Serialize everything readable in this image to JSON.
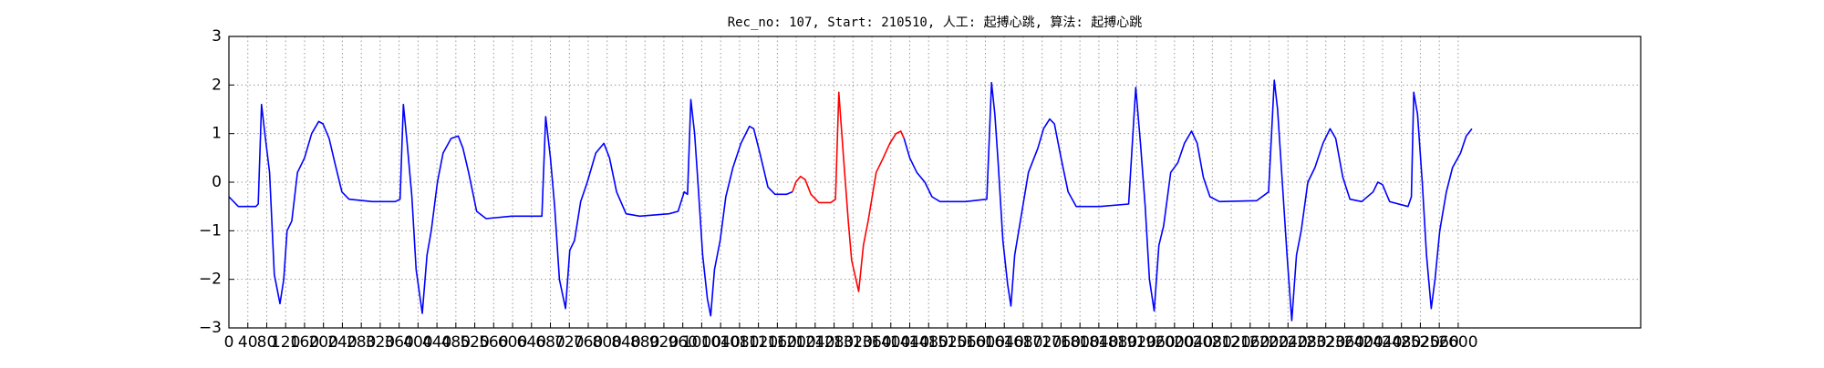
{
  "chart_data": {
    "type": "line",
    "title": "Rec_no: 107, Start: 210510, 人工: 起搏心跳, 算法: 起搏心跳",
    "xlim": [
      0,
      2986
    ],
    "ylim": [
      -3,
      3
    ],
    "xticks": [
      0,
      40,
      80,
      120,
      160,
      200,
      240,
      280,
      320,
      360,
      400,
      440,
      480,
      520,
      560,
      600,
      640,
      680,
      720,
      760,
      800,
      840,
      880,
      920,
      960,
      1000,
      1040,
      1080,
      1120,
      1160,
      1200,
      1240,
      1280,
      1320,
      1360,
      1400,
      1440,
      1480,
      1520,
      1560,
      1600,
      1640,
      1680,
      1720,
      1760,
      1800,
      1840,
      1880,
      1920,
      1960,
      2000,
      2040,
      2080,
      2120,
      2160,
      2200,
      2240,
      2280,
      2320,
      2360,
      2400,
      2440,
      2480,
      2520,
      2560,
      2600
    ],
    "yticks": [
      {
        "value": -3,
        "label": "−3"
      },
      {
        "value": -2,
        "label": "−2"
      },
      {
        "value": -1,
        "label": "−1"
      },
      0,
      1,
      2,
      3
    ],
    "grid": true,
    "series": [
      {
        "color": "#0000ff",
        "x": [
          0,
          20,
          57,
          62,
          69,
          76,
          86,
          96,
          108,
          116,
          123,
          133,
          145,
          160,
          175,
          190,
          199,
          212,
          224,
          239,
          254,
          303,
          352,
          362,
          369,
          377,
          387,
          396,
          409,
          419,
          428,
          441,
          453,
          470,
          485,
          495,
          507,
          524,
          544,
          598,
          662,
          670,
          680,
          689,
          699,
          712,
          721,
          731,
          744,
          758,
          776,
          793,
          805,
          820,
          840,
          869,
          931,
          950,
          963,
          970,
          977,
          985,
          992,
          1002,
          1012,
          1019,
          1027,
          1039,
          1051,
          1066,
          1083,
          1101,
          1110,
          1123,
          1140,
          1155,
          1179,
          1192
        ],
        "values": [
          -0.3,
          -0.5,
          -0.5,
          -0.45,
          1.6,
          1.0,
          0.2,
          -1.9,
          -2.5,
          -2.0,
          -1.0,
          -0.8,
          0.2,
          0.5,
          1.0,
          1.25,
          1.2,
          0.9,
          0.4,
          -0.2,
          -0.35,
          -0.4,
          -0.4,
          -0.35,
          1.6,
          0.8,
          -0.3,
          -1.8,
          -2.7,
          -1.5,
          -1.0,
          0.0,
          0.6,
          0.9,
          0.95,
          0.7,
          0.2,
          -0.6,
          -0.75,
          -0.7,
          -0.7,
          1.35,
          0.5,
          -0.5,
          -2.0,
          -2.6,
          -1.4,
          -1.2,
          -0.4,
          0.0,
          0.6,
          0.8,
          0.5,
          -0.2,
          -0.65,
          -0.7,
          -0.65,
          -0.6,
          -0.2,
          -0.25,
          1.7,
          1.0,
          0.0,
          -1.5,
          -2.4,
          -2.75,
          -1.8,
          -1.2,
          -0.3,
          0.3,
          0.8,
          1.15,
          1.1,
          0.6,
          -0.1,
          -0.25,
          -0.25,
          -0.2
        ]
      },
      {
        "color": "#ff0000",
        "x": [
          1192,
          1199,
          1209,
          1219,
          1231,
          1248,
          1273,
          1283,
          1290,
          1300,
          1310,
          1317,
          1332,
          1342,
          1352,
          1369,
          1384,
          1398,
          1411,
          1421,
          1428
        ],
        "values": [
          -0.2,
          0.0,
          0.12,
          0.05,
          -0.25,
          -0.42,
          -0.42,
          -0.35,
          1.85,
          0.5,
          -0.8,
          -1.6,
          -2.25,
          -1.3,
          -0.8,
          0.2,
          0.5,
          0.8,
          1.0,
          1.05,
          0.9
        ]
      },
      {
        "color": "#0000ff",
        "x": [
          1428,
          1440,
          1455,
          1472,
          1487,
          1504,
          1558,
          1603,
          1613,
          1620,
          1627,
          1637,
          1647,
          1654,
          1662,
          1674,
          1691,
          1711,
          1723,
          1736,
          1746,
          1760,
          1775,
          1792,
          1842,
          1903,
          1918,
          1928,
          1938,
          1947,
          1957,
          1967,
          1977,
          1992,
          2007,
          2021,
          2036,
          2048,
          2061,
          2075,
          2095,
          2174,
          2199,
          2211,
          2218,
          2228,
          2238,
          2248,
          2258,
          2268,
          2282,
          2297,
          2314,
          2329,
          2341,
          2356,
          2371,
          2396,
          2420,
          2430,
          2440,
          2455,
          2494,
          2501,
          2506,
          2514,
          2524,
          2533,
          2543,
          2551,
          2561,
          2575,
          2588,
          2605,
          2617,
          2629
        ],
        "values": [
          0.9,
          0.5,
          0.2,
          0.0,
          -0.3,
          -0.4,
          -0.4,
          -0.35,
          2.05,
          1.4,
          0.4,
          -1.2,
          -2.1,
          -2.55,
          -1.5,
          -0.8,
          0.2,
          0.7,
          1.1,
          1.3,
          1.2,
          0.5,
          -0.2,
          -0.5,
          -0.5,
          -0.45,
          1.95,
          0.8,
          -0.5,
          -2.0,
          -2.65,
          -1.3,
          -0.9,
          0.2,
          0.4,
          0.8,
          1.05,
          0.8,
          0.1,
          -0.3,
          -0.4,
          -0.38,
          -0.2,
          2.1,
          1.5,
          0.0,
          -1.5,
          -2.85,
          -1.5,
          -1.0,
          0.0,
          0.3,
          0.8,
          1.1,
          0.9,
          0.1,
          -0.35,
          -0.4,
          -0.2,
          0.0,
          -0.05,
          -0.4,
          -0.5,
          -0.3,
          1.85,
          1.4,
          0.0,
          -1.5,
          -2.6,
          -2.0,
          -1.0,
          -0.2,
          0.3,
          0.6,
          0.95,
          1.1
        ]
      }
    ]
  }
}
